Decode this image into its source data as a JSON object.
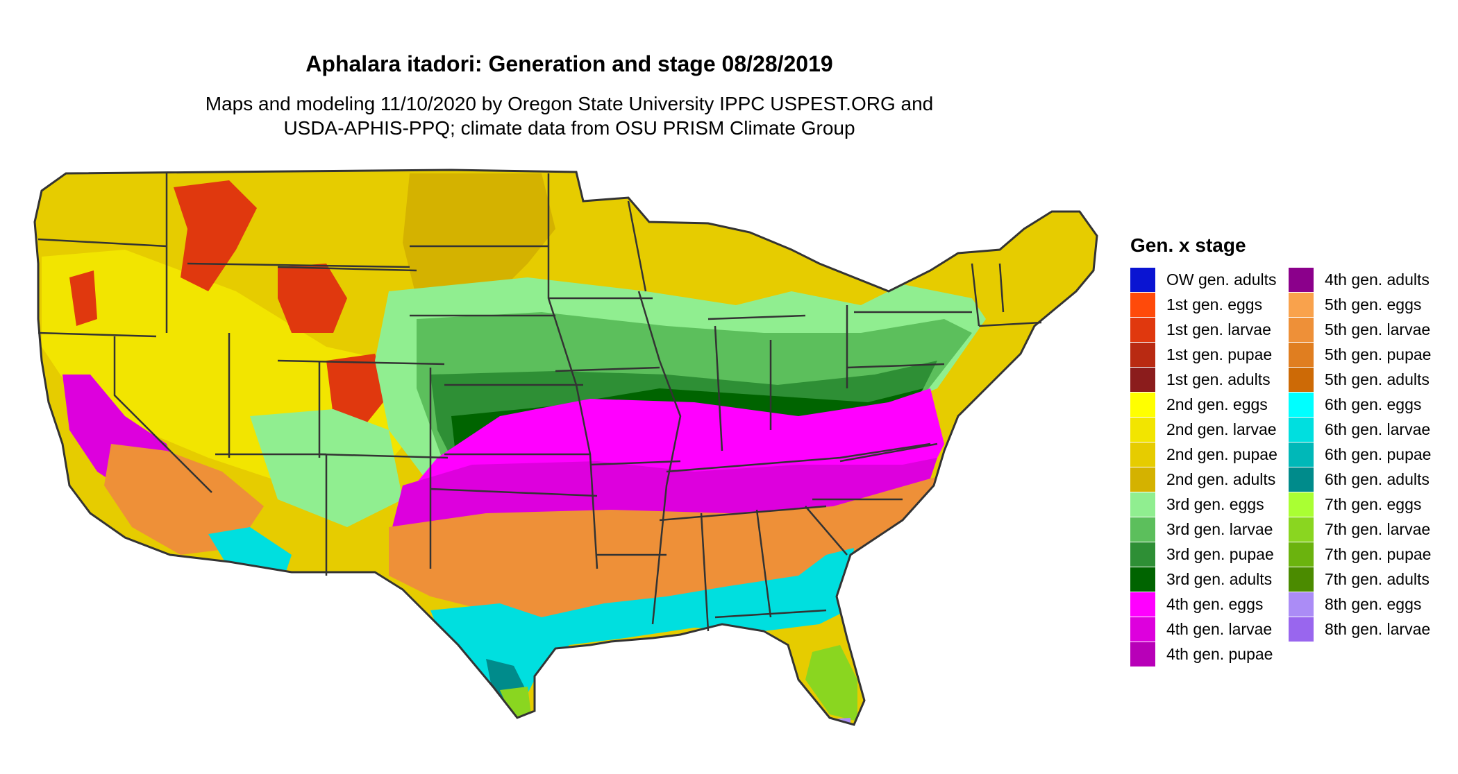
{
  "title": "Aphalara itadori: Generation and stage 08/28/2019",
  "subtitle_lines": [
    "Maps and modeling 11/10/2020 by Oregon State University IPPC USPEST.ORG and",
    "USDA-APHIS-PPQ; climate data from OSU PRISM Climate Group"
  ],
  "legend": {
    "title": "Gen. x stage",
    "columns": [
      [
        {
          "label": "OW gen. adults",
          "color": "#0a14d2"
        },
        {
          "label": "1st gen. eggs",
          "color": "#ff4a0a"
        },
        {
          "label": "1st gen. larvae",
          "color": "#e0380e"
        },
        {
          "label": "1st gen. pupae",
          "color": "#b92a12"
        },
        {
          "label": "1st gen. adults",
          "color": "#8b1c1c"
        },
        {
          "label": "2nd gen. eggs",
          "color": "#ffff00"
        },
        {
          "label": "2nd gen. larvae",
          "color": "#f2e500"
        },
        {
          "label": "2nd gen. pupae",
          "color": "#e6cc00"
        },
        {
          "label": "2nd gen. adults",
          "color": "#d4b200"
        },
        {
          "label": "3rd gen. eggs",
          "color": "#90ee90"
        },
        {
          "label": "3rd gen. larvae",
          "color": "#5cbf5c"
        },
        {
          "label": "3rd gen. pupae",
          "color": "#2e8f35"
        },
        {
          "label": "3rd gen. adults",
          "color": "#006400"
        },
        {
          "label": "4th gen. eggs",
          "color": "#ff00ff"
        },
        {
          "label": "4th gen. larvae",
          "color": "#dd00dd"
        },
        {
          "label": "4th gen. pupae",
          "color": "#b800b8"
        }
      ],
      [
        {
          "label": "4th gen. adults",
          "color": "#8b008b"
        },
        {
          "label": "5th gen. eggs",
          "color": "#f9a24c"
        },
        {
          "label": "5th gen. larvae",
          "color": "#ee9038"
        },
        {
          "label": "5th gen. pupae",
          "color": "#e07e20"
        },
        {
          "label": "5th gen. adults",
          "color": "#cd6a06"
        },
        {
          "label": "6th gen. eggs",
          "color": "#00ffff"
        },
        {
          "label": "6th gen. larvae",
          "color": "#00dfdf"
        },
        {
          "label": "6th gen. pupae",
          "color": "#00b8b8"
        },
        {
          "label": "6th gen. adults",
          "color": "#008b8b"
        },
        {
          "label": "7th gen. eggs",
          "color": "#aaff33"
        },
        {
          "label": "7th gen. larvae",
          "color": "#8ad620"
        },
        {
          "label": "7th gen. pupae",
          "color": "#6bb30e"
        },
        {
          "label": "7th gen. adults",
          "color": "#4b8b00"
        },
        {
          "label": "8th gen. eggs",
          "color": "#ab8cf6"
        },
        {
          "label": "8th gen. larvae",
          "color": "#9966ee"
        }
      ]
    ]
  },
  "map": {
    "palette": {
      "stage_2nd_pupae": "#e6cc00",
      "stage_2nd_adults": "#d4b200",
      "stage_2nd_larvae": "#f2e500",
      "stage_1st_larvae": "#e0380e",
      "stage_3rd_eggs": "#90ee90",
      "stage_3rd_larvae": "#5cbf5c",
      "stage_3rd_pupae": "#2e8f35",
      "stage_3rd_adults": "#006400",
      "stage_4th_eggs": "#ff00ff",
      "stage_4th_larvae": "#dd00dd",
      "stage_5th_larvae": "#ee9038",
      "stage_6th_larvae": "#00dfdf",
      "stage_6th_adults": "#008b8b",
      "stage_7th_larvae": "#8ad620",
      "stage_8th_eggs": "#ab8cf6",
      "border": "#333333"
    }
  }
}
